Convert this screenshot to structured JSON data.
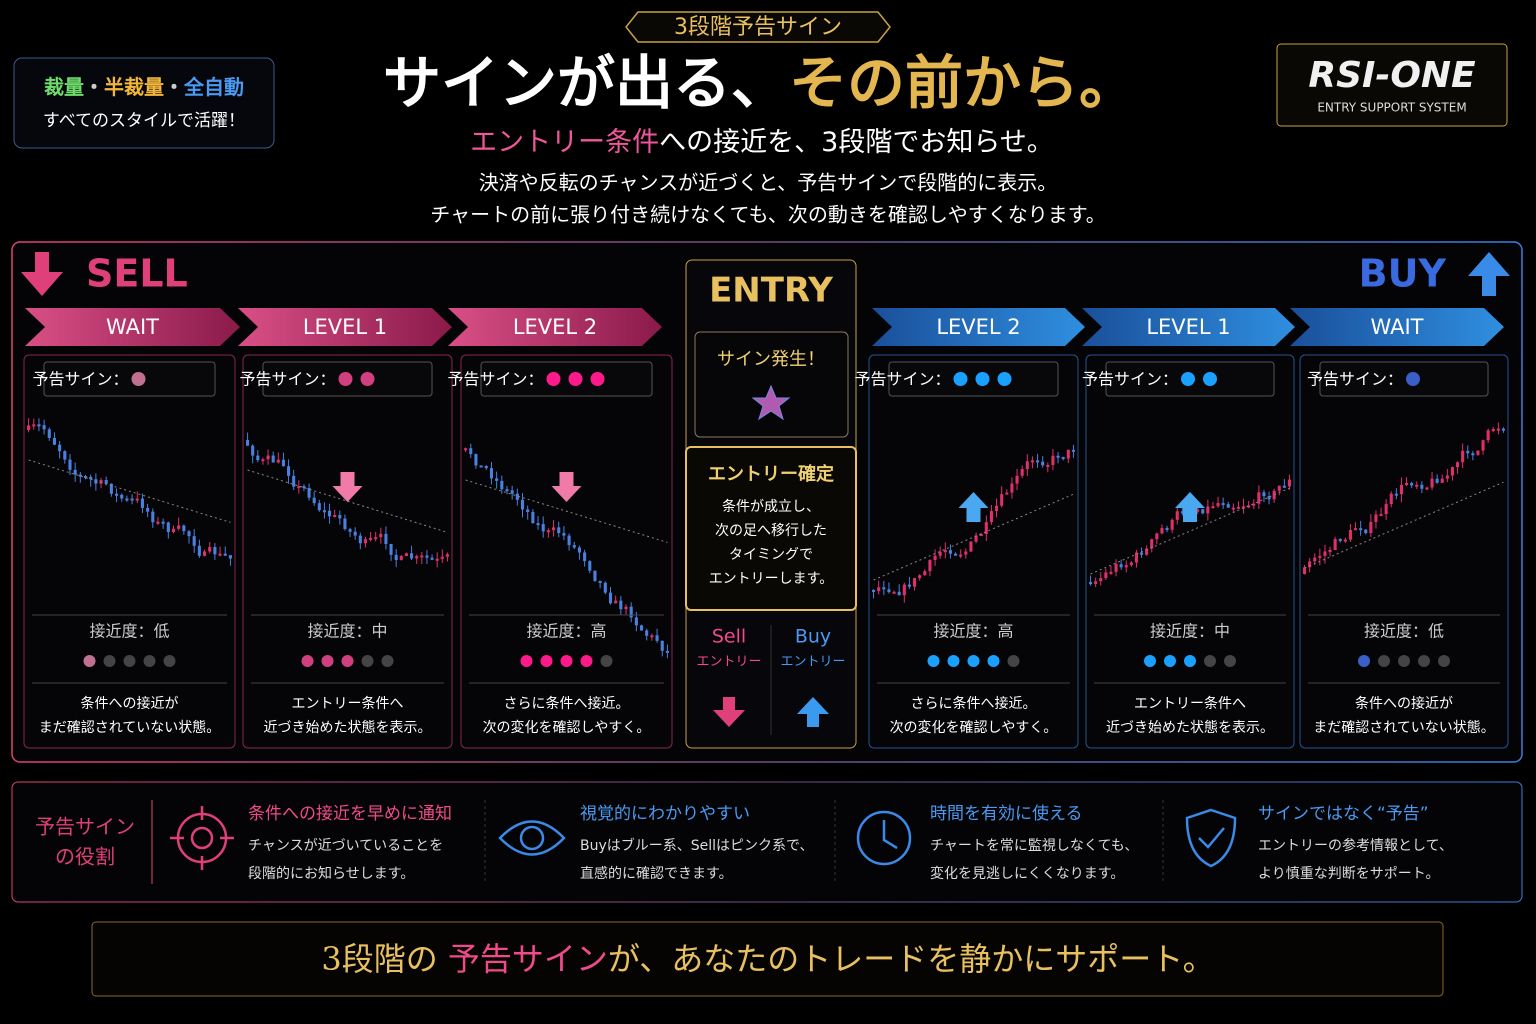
{
  "header": {
    "badge": "3段階予告サイン",
    "title_main": "サインが出る、",
    "title_gold": "その前から。",
    "subtitle_highlight": "エントリー条件",
    "subtitle_rest": "への接近を、3段階でお知らせ。",
    "description": [
      "決済や反転のチャンスが近づくと、予告サインで段階的に表示。",
      "チャートの前に張り付き続けなくても、次の動きを確認しやすくなります。"
    ]
  },
  "style_badge": {
    "styles": [
      "裁量",
      "・",
      "半裁量",
      "・",
      "全自動"
    ],
    "caption": "すべてのスタイルで活躍！"
  },
  "logo": {
    "name": "RSI-ONE",
    "tagline": "ENTRY SUPPORT SYSTEM"
  },
  "sell": {
    "label": "SELL",
    "stages": [
      {
        "stage": "WAIT",
        "sign": "予告サイン：",
        "proximity": "接近度：低",
        "description": [
          "条件への接近が",
          "まだ確認されていない状態。"
        ]
      },
      {
        "stage": "LEVEL 1",
        "sign": "予告サイン：",
        "proximity": "接近度：中",
        "description": [
          "エントリー条件へ",
          "近づき始めた状態を表示。"
        ]
      },
      {
        "stage": "LEVEL 2",
        "sign": "予告サイン：",
        "proximity": "接近度：高",
        "description": [
          "さらに条件へ接近。",
          "次の変化を確認しやすく。"
        ]
      }
    ]
  },
  "buy": {
    "label": "BUY",
    "stages": [
      {
        "stage": "LEVEL 2",
        "sign": "予告サイン：",
        "proximity": "接近度：高",
        "description": [
          "さらに条件へ接近。",
          "次の変化を確認しやすく。"
        ]
      },
      {
        "stage": "LEVEL 1",
        "sign": "予告サイン：",
        "proximity": "接近度：中",
        "description": [
          "エントリー条件へ",
          "近づき始めた状態を表示。"
        ]
      },
      {
        "stage": "WAIT",
        "sign": "予告サイン：",
        "proximity": "接近度：低",
        "description": [
          "条件への接近が",
          "まだ確認されていない状態。"
        ]
      }
    ]
  },
  "entry": {
    "title": "ENTRY",
    "signal": "サイン発生！",
    "confirm_title": "エントリー確定",
    "confirm_text": [
      "条件が成立し、",
      "次の足へ移行した",
      "タイミングで",
      "エントリーします。"
    ],
    "sell": "Sell",
    "sell_sub": "エントリー",
    "buy": "Buy",
    "buy_sub": "エントリー"
  },
  "roles": {
    "label": [
      "予告サイン",
      "の役割"
    ],
    "items": [
      {
        "title": "条件への接近を早めに通知",
        "text": [
          "チャンスが近づいていることを",
          "段階的にお知らせします。"
        ]
      },
      {
        "title": "視覚的にわかりやすい",
        "text": [
          "Buyはブルー系、Sellはピンク系で、",
          "直感的に確認できます。"
        ]
      },
      {
        "title": "時間を有効に使える",
        "text": [
          "チャートを常に監視しなくても、",
          "変化を見逃しにくくなります。"
        ]
      },
      {
        "title": "サインではなく“予告”",
        "text": [
          "エントリーの参考情報として、",
          "より慎重な判断をサポート。"
        ]
      }
    ]
  },
  "footer": {
    "parts": [
      "3段階の ",
      "予告サイン",
      "が、あなたのトレードを静かにサポート。"
    ]
  }
}
